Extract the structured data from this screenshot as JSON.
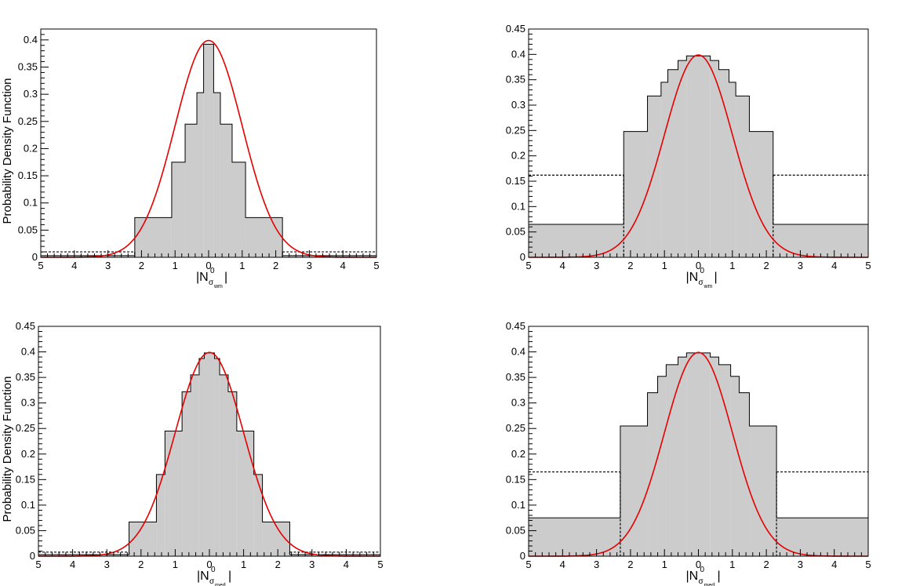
{
  "chart_data": [
    {
      "type": "bar",
      "panel": "top-left",
      "ylabel": "Probability Density Function",
      "xlabel": {
        "prefix": "|N",
        "superscript": "0",
        "sub_sigma": "σ",
        "sub_sub": "wm",
        "suffix": "|"
      },
      "xlim": [
        -5,
        5
      ],
      "ylim": [
        0,
        0.42
      ],
      "yticks": [
        0,
        0.05,
        0.1,
        0.15,
        0.2,
        0.25,
        0.3,
        0.35,
        0.4
      ],
      "xtick_labels": [
        "5",
        "4",
        "3",
        "2",
        "1",
        "0",
        "1",
        "2",
        "3",
        "4",
        "5"
      ],
      "bin_edges": [
        -5,
        -2.2,
        -1.1,
        -0.7,
        -0.35,
        -0.15,
        0.15,
        0.35,
        0.7,
        1.1,
        2.2,
        5
      ],
      "bin_values": [
        0.003,
        0.073,
        0.175,
        0.245,
        0.303,
        0.392,
        0.303,
        0.245,
        0.175,
        0.073,
        0.003
      ],
      "dotted_bins": [
        0,
        10
      ],
      "dotted_level": 0.01,
      "curve": {
        "type": "gaussian",
        "mean": 0,
        "sigma": 1,
        "color": "#e60000"
      }
    },
    {
      "type": "bar",
      "panel": "top-right",
      "ylabel": "",
      "xlabel": {
        "prefix": "|N",
        "superscript": "0",
        "sub_sigma": "σ",
        "sub_sub": "wm",
        "suffix": "|"
      },
      "xlim": [
        -5,
        5
      ],
      "ylim": [
        0,
        0.45
      ],
      "yticks": [
        0,
        0.05,
        0.1,
        0.15,
        0.2,
        0.25,
        0.3,
        0.35,
        0.4,
        0.45
      ],
      "xtick_labels": [
        "5",
        "4",
        "3",
        "2",
        "1",
        "0",
        "1",
        "2",
        "3",
        "4",
        "5"
      ],
      "bin_edges": [
        -5,
        -2.2,
        -1.5,
        -1.1,
        -0.9,
        -0.6,
        -0.35,
        0.35,
        0.6,
        0.9,
        1.1,
        1.5,
        2.2,
        5
      ],
      "bin_values": [
        0.065,
        0.248,
        0.318,
        0.345,
        0.37,
        0.388,
        0.397,
        0.388,
        0.37,
        0.345,
        0.318,
        0.248,
        0.065
      ],
      "dotted_bins": [
        0,
        12
      ],
      "dotted_level": 0.162,
      "curve": {
        "type": "gaussian",
        "mean": 0,
        "sigma": 1,
        "color": "#e60000"
      }
    },
    {
      "type": "bar",
      "panel": "bottom-left",
      "ylabel": "Probability Density Function",
      "xlabel": {
        "prefix": "|N",
        "superscript": "0",
        "sub_sigma": "σ",
        "sub_sub": "med",
        "suffix": "|"
      },
      "xlim": [
        -5,
        5
      ],
      "ylim": [
        0,
        0.45
      ],
      "yticks": [
        0,
        0.05,
        0.1,
        0.15,
        0.2,
        0.25,
        0.3,
        0.35,
        0.4,
        0.45
      ],
      "xtick_labels": [
        "5",
        "4",
        "3",
        "2",
        "1",
        "0",
        "1",
        "2",
        "3",
        "4",
        "5"
      ],
      "bin_edges": [
        -5,
        -2.35,
        -1.55,
        -1.3,
        -0.8,
        -0.55,
        -0.3,
        -0.15,
        0.15,
        0.3,
        0.55,
        0.8,
        1.3,
        1.55,
        2.35,
        5
      ],
      "bin_values": [
        0.003,
        0.067,
        0.16,
        0.245,
        0.322,
        0.355,
        0.387,
        0.398,
        0.387,
        0.355,
        0.322,
        0.245,
        0.16,
        0.067,
        0.003
      ],
      "dotted_bins": [
        0,
        14
      ],
      "dotted_level": 0.008,
      "curve": {
        "type": "gaussian",
        "mean": 0,
        "sigma": 1,
        "color": "#e60000"
      }
    },
    {
      "type": "bar",
      "panel": "bottom-right",
      "ylabel": "",
      "xlabel": {
        "prefix": "|N",
        "superscript": "0",
        "sub_sigma": "σ",
        "sub_sub": "med",
        "suffix": "|"
      },
      "xlim": [
        -5,
        5
      ],
      "ylim": [
        0,
        0.45
      ],
      "yticks": [
        0,
        0.05,
        0.1,
        0.15,
        0.2,
        0.25,
        0.3,
        0.35,
        0.4,
        0.45
      ],
      "xtick_labels": [
        "5",
        "4",
        "3",
        "2",
        "1",
        "0",
        "1",
        "2",
        "3",
        "4",
        "5"
      ],
      "bin_edges": [
        -5,
        -2.3,
        -1.5,
        -1.2,
        -0.95,
        -0.6,
        -0.35,
        0.35,
        0.6,
        0.95,
        1.2,
        1.5,
        2.3,
        5
      ],
      "bin_values": [
        0.075,
        0.255,
        0.32,
        0.352,
        0.375,
        0.39,
        0.398,
        0.39,
        0.375,
        0.352,
        0.32,
        0.255,
        0.075
      ],
      "dotted_bins": [
        0,
        12
      ],
      "dotted_level": 0.165,
      "curve": {
        "type": "gaussian",
        "mean": 0,
        "sigma": 1,
        "color": "#e60000"
      }
    }
  ]
}
